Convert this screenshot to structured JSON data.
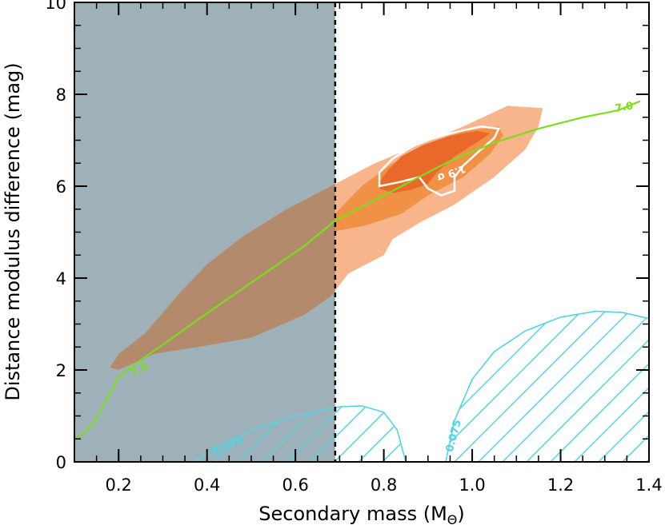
{
  "chart_data": {
    "type": "contour",
    "xlabel": "Secondary mass (M",
    "xlabel_symbol": "Θ",
    "xlabel_close": ")",
    "ylabel": "Distance modulus difference (mag)",
    "xlim": [
      0.1,
      1.4
    ],
    "ylim": [
      0,
      10
    ],
    "xticks": [
      0.2,
      0.4,
      0.6,
      0.8,
      1.0,
      1.2,
      1.4
    ],
    "xtick_labels": [
      "0.2",
      "0.4",
      "0.6",
      "0.8",
      "1.0",
      "1.2",
      "1.4"
    ],
    "yticks": [
      0,
      2,
      4,
      6,
      8,
      10
    ],
    "ytick_labels": [
      "0",
      "2",
      "4",
      "6",
      "8",
      "10"
    ],
    "excluded_region": {
      "x_range": [
        0.1,
        0.69
      ],
      "color": "#9fb1b8"
    },
    "dashed_line": {
      "x": 0.69
    },
    "confidence_regions": [
      {
        "level": "outer",
        "color": "#f8b48a",
        "points": [
          [
            0.2,
            2.0
          ],
          [
            0.28,
            2.35
          ],
          [
            0.38,
            2.5
          ],
          [
            0.5,
            2.7
          ],
          [
            0.62,
            3.2
          ],
          [
            0.68,
            3.6
          ],
          [
            0.72,
            4.1
          ],
          [
            0.8,
            4.5
          ],
          [
            0.82,
            4.85
          ],
          [
            0.88,
            5.2
          ],
          [
            0.96,
            5.6
          ],
          [
            1.05,
            6.2
          ],
          [
            1.12,
            6.8
          ],
          [
            1.15,
            7.3
          ],
          [
            1.16,
            7.7
          ],
          [
            1.08,
            7.75
          ],
          [
            0.98,
            7.3
          ],
          [
            0.88,
            6.9
          ],
          [
            0.78,
            6.5
          ],
          [
            0.68,
            6.0
          ],
          [
            0.58,
            5.5
          ],
          [
            0.48,
            4.9
          ],
          [
            0.4,
            4.3
          ],
          [
            0.34,
            3.7
          ],
          [
            0.26,
            2.8
          ],
          [
            0.2,
            2.35
          ],
          [
            0.18,
            2.05
          ]
        ]
      },
      {
        "level": "middle",
        "color": "#f19145",
        "points": [
          [
            0.68,
            5.0
          ],
          [
            0.76,
            5.15
          ],
          [
            0.84,
            5.4
          ],
          [
            0.9,
            5.8
          ],
          [
            0.98,
            6.2
          ],
          [
            1.04,
            6.7
          ],
          [
            1.07,
            7.1
          ],
          [
            1.06,
            7.3
          ],
          [
            0.98,
            7.2
          ],
          [
            0.9,
            6.9
          ],
          [
            0.82,
            6.5
          ],
          [
            0.75,
            6.0
          ],
          [
            0.7,
            5.5
          ],
          [
            0.67,
            5.2
          ]
        ]
      },
      {
        "level": "inner",
        "color": "#e8692a",
        "points": [
          [
            0.79,
            5.95
          ],
          [
            0.82,
            5.85
          ],
          [
            0.86,
            5.92
          ],
          [
            0.9,
            6.05
          ],
          [
            0.92,
            6.3
          ],
          [
            0.96,
            6.65
          ],
          [
            1.01,
            6.95
          ],
          [
            1.04,
            7.15
          ],
          [
            1.01,
            7.2
          ],
          [
            0.95,
            7.1
          ],
          [
            0.89,
            6.9
          ],
          [
            0.84,
            6.65
          ],
          [
            0.81,
            6.35
          ],
          [
            0.79,
            6.1
          ]
        ]
      }
    ],
    "sigma_contour": {
      "label": "1.9 σ",
      "color": "#ffffff",
      "points": [
        [
          0.79,
          6.0
        ],
        [
          0.84,
          6.1
        ],
        [
          0.88,
          6.2
        ],
        [
          0.9,
          5.95
        ],
        [
          0.93,
          5.8
        ],
        [
          0.96,
          5.9
        ],
        [
          0.96,
          6.2
        ],
        [
          0.98,
          6.45
        ],
        [
          1.02,
          6.8
        ],
        [
          1.05,
          7.05
        ],
        [
          1.06,
          7.25
        ],
        [
          1.02,
          7.3
        ],
        [
          0.95,
          7.15
        ],
        [
          0.88,
          6.95
        ],
        [
          0.82,
          6.6
        ],
        [
          0.79,
          6.3
        ],
        [
          0.79,
          6.1
        ]
      ]
    },
    "green_curve": {
      "label": "7.0",
      "color": "#7cdc1e",
      "points": [
        [
          0.1,
          0.45
        ],
        [
          0.14,
          0.8
        ],
        [
          0.17,
          1.3
        ],
        [
          0.2,
          1.85
        ],
        [
          0.24,
          2.15
        ],
        [
          0.3,
          2.55
        ],
        [
          0.38,
          3.1
        ],
        [
          0.5,
          3.9
        ],
        [
          0.62,
          4.7
        ],
        [
          0.69,
          5.25
        ],
        [
          0.75,
          5.55
        ],
        [
          0.85,
          6.05
        ],
        [
          0.95,
          6.55
        ],
        [
          1.05,
          6.95
        ],
        [
          1.15,
          7.25
        ],
        [
          1.25,
          7.5
        ],
        [
          1.33,
          7.65
        ],
        [
          1.38,
          7.85
        ]
      ]
    },
    "cyan_contours": {
      "label": "0.075",
      "color": "#52d4e8",
      "left_dome": [
        [
          0.37,
          0.0
        ],
        [
          0.42,
          0.3
        ],
        [
          0.5,
          0.68
        ],
        [
          0.6,
          1.0
        ],
        [
          0.7,
          1.2
        ],
        [
          0.75,
          1.22
        ],
        [
          0.8,
          1.08
        ],
        [
          0.83,
          0.7
        ],
        [
          0.85,
          0.0
        ]
      ],
      "right_dome": [
        [
          0.94,
          0.0
        ],
        [
          0.96,
          0.9
        ],
        [
          1.0,
          1.8
        ],
        [
          1.05,
          2.4
        ],
        [
          1.12,
          2.85
        ],
        [
          1.2,
          3.15
        ],
        [
          1.28,
          3.28
        ],
        [
          1.34,
          3.25
        ],
        [
          1.4,
          3.12
        ],
        [
          1.4,
          0.0
        ]
      ]
    }
  }
}
